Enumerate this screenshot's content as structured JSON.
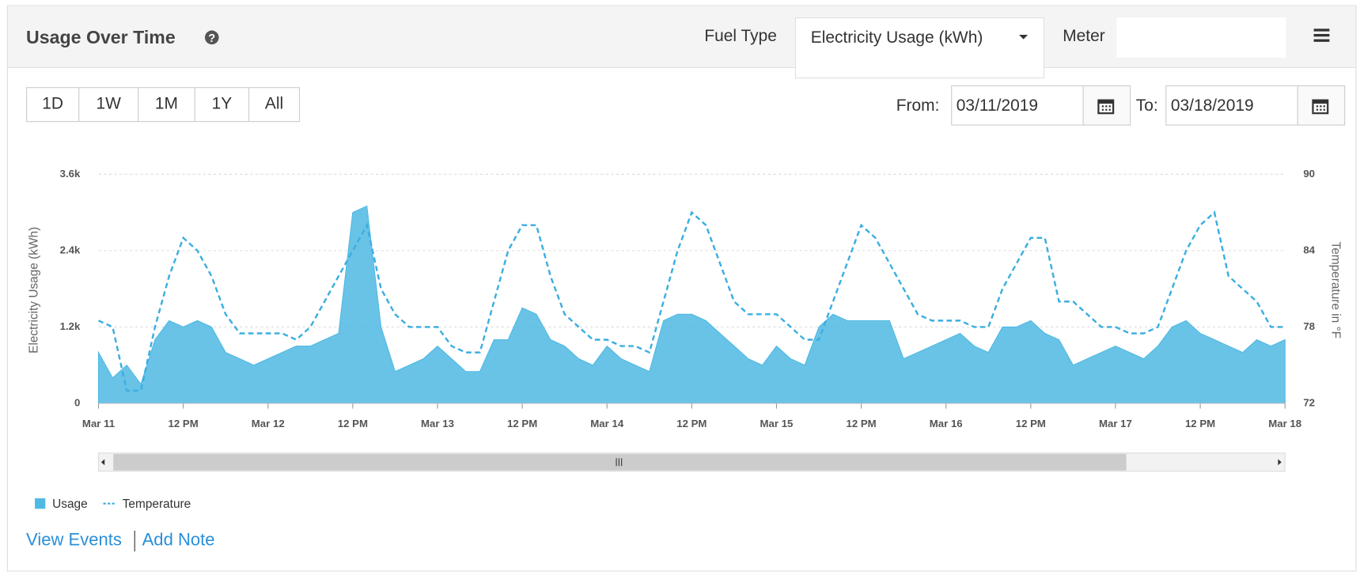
{
  "header": {
    "title": "Usage Over Time",
    "fuel_label": "Fuel Type",
    "fuel_value": "Electricity Usage (kWh)",
    "meter_label": "Meter"
  },
  "controls": {
    "ranges": [
      "1D",
      "1W",
      "1M",
      "1Y",
      "All"
    ],
    "from_label": "From:",
    "from_value": "03/11/2019",
    "to_label": "To:",
    "to_value": "03/18/2019"
  },
  "chart_data": {
    "type": "area",
    "ylabel": "Electricity Usage (kWh)",
    "y2label": "Temperature in °F",
    "xlim": [
      0,
      168
    ],
    "xticks": [
      {
        "value": 0,
        "label": "Mar 11"
      },
      {
        "value": 12,
        "label": "12 PM"
      },
      {
        "value": 24,
        "label": "Mar 12"
      },
      {
        "value": 36,
        "label": "12 PM"
      },
      {
        "value": 48,
        "label": "Mar 13"
      },
      {
        "value": 60,
        "label": "12 PM"
      },
      {
        "value": 72,
        "label": "Mar 14"
      },
      {
        "value": 84,
        "label": "12 PM"
      },
      {
        "value": 96,
        "label": "Mar 15"
      },
      {
        "value": 108,
        "label": "12 PM"
      },
      {
        "value": 120,
        "label": "Mar 16"
      },
      {
        "value": 132,
        "label": "12 PM"
      },
      {
        "value": 144,
        "label": "Mar 17"
      },
      {
        "value": 156,
        "label": "12 PM"
      },
      {
        "value": 168,
        "label": "Mar 18"
      }
    ],
    "ylim": [
      0,
      3600
    ],
    "yticks": [
      0,
      {
        "value": 1200,
        "label": "1.2k"
      },
      {
        "value": 2400,
        "label": "2.4k"
      },
      {
        "value": 3600,
        "label": "3.6k"
      }
    ],
    "y2lim": [
      72,
      90
    ],
    "y2ticks": [
      72,
      78,
      84,
      90
    ],
    "grid": true,
    "x": [
      0,
      2,
      4,
      6,
      8,
      10,
      12,
      14,
      16,
      18,
      20,
      22,
      24,
      26,
      28,
      30,
      32,
      34,
      36,
      38,
      40,
      42,
      44,
      46,
      48,
      50,
      52,
      54,
      56,
      58,
      60,
      62,
      64,
      66,
      68,
      70,
      72,
      74,
      76,
      78,
      80,
      82,
      84,
      86,
      88,
      90,
      92,
      94,
      96,
      98,
      100,
      102,
      104,
      106,
      108,
      110,
      112,
      114,
      116,
      118,
      120,
      122,
      124,
      126,
      128,
      130,
      132,
      134,
      136,
      138,
      140,
      142,
      144,
      146,
      148,
      150,
      152,
      154,
      156,
      158,
      160,
      162,
      164,
      166,
      168
    ],
    "series": [
      {
        "name": "Usage",
        "type": "area",
        "color": "#4fb9e3",
        "values": [
          800,
          400,
          600,
          300,
          1000,
          1300,
          1200,
          1300,
          1200,
          800,
          700,
          600,
          700,
          800,
          900,
          900,
          1000,
          1100,
          3000,
          3100,
          1200,
          500,
          600,
          700,
          900,
          700,
          500,
          500,
          1000,
          1000,
          1500,
          1400,
          1000,
          900,
          700,
          600,
          900,
          700,
          600,
          500,
          1300,
          1400,
          1400,
          1300,
          1100,
          900,
          700,
          600,
          900,
          700,
          600,
          1200,
          1400,
          1300,
          1300,
          1300,
          1300,
          700,
          800,
          900,
          1000,
          1100,
          900,
          800,
          1200,
          1200,
          1300,
          1100,
          1000,
          600,
          700,
          800,
          900,
          800,
          700,
          900,
          1200,
          1300,
          1100,
          1000,
          900,
          800,
          1000,
          900,
          1000
        ]
      },
      {
        "name": "Temperature",
        "type": "line",
        "axis": "y2",
        "dashed": true,
        "color": "#3aaee0",
        "values": [
          78.5,
          78,
          73,
          73,
          78,
          82,
          85,
          84,
          82,
          79,
          77.5,
          77.5,
          77.5,
          77.5,
          77,
          78,
          80,
          82,
          84,
          86,
          81,
          79,
          78,
          78,
          78,
          76.5,
          76,
          76,
          80,
          84,
          86,
          86,
          82,
          79,
          78,
          77,
          77,
          76.5,
          76.5,
          76,
          80,
          84,
          87,
          86,
          83,
          80,
          79,
          79,
          79,
          78,
          77,
          77,
          80,
          83,
          86,
          85,
          83,
          81,
          79,
          78.5,
          78.5,
          78.5,
          78,
          78,
          81,
          83,
          85,
          85,
          80,
          80,
          79,
          78,
          78,
          77.5,
          77.5,
          78,
          81,
          84,
          86,
          87,
          82,
          81,
          80,
          78,
          78
        ]
      }
    ]
  },
  "links": [
    "View Events",
    "Add Note"
  ]
}
